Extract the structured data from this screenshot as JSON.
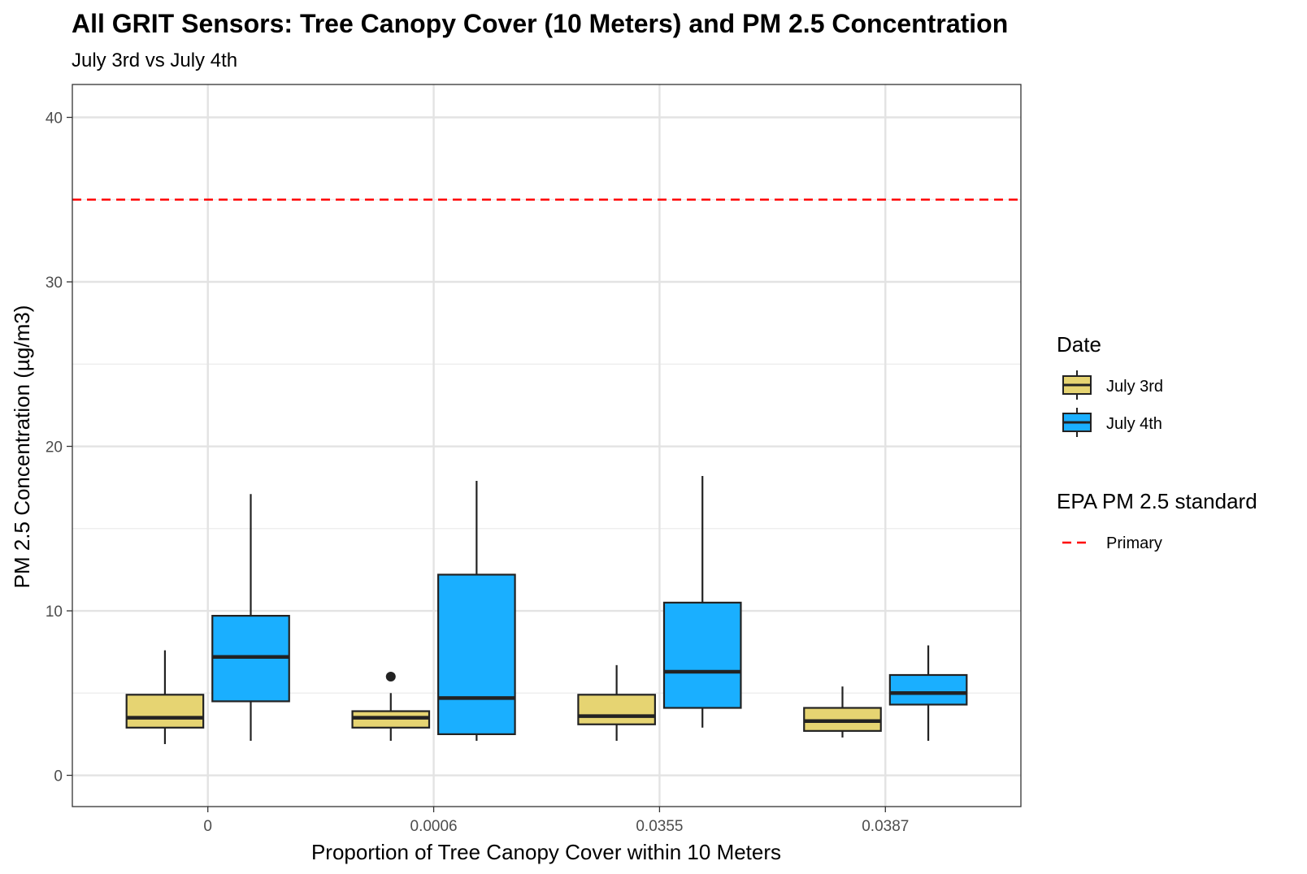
{
  "chart_data": {
    "type": "boxplot",
    "title": "All GRIT Sensors: Tree Canopy Cover (10 Meters) and PM 2.5 Concentration",
    "subtitle": "July 3rd vs July 4th",
    "xlabel": "Proportion of Tree Canopy Cover within 10 Meters",
    "ylabel": "PM 2.5 Concentration (µg/m3)",
    "categories": [
      "0",
      "0.0006",
      "0.0355",
      "0.0387"
    ],
    "ylim": [
      -1.9,
      42
    ],
    "yticks": [
      0,
      10,
      20,
      30,
      40
    ],
    "grid": true,
    "legend_position": "right",
    "series": [
      {
        "name": "July 3rd",
        "color": "#E6D472",
        "boxes": [
          {
            "whisker_low": 1.9,
            "q1": 2.9,
            "median": 3.5,
            "q3": 4.9,
            "whisker_high": 7.6,
            "outliers": []
          },
          {
            "whisker_low": 2.1,
            "q1": 2.9,
            "median": 3.5,
            "q3": 3.9,
            "whisker_high": 5.0,
            "outliers": [
              6.0
            ]
          },
          {
            "whisker_low": 2.1,
            "q1": 3.1,
            "median": 3.6,
            "q3": 4.9,
            "whisker_high": 6.7,
            "outliers": []
          },
          {
            "whisker_low": 2.3,
            "q1": 2.7,
            "median": 3.3,
            "q3": 4.1,
            "whisker_high": 5.4,
            "outliers": []
          }
        ]
      },
      {
        "name": "July 4th",
        "color": "#1AAFFF",
        "boxes": [
          {
            "whisker_low": 2.1,
            "q1": 4.5,
            "median": 7.2,
            "q3": 9.7,
            "whisker_high": 17.1,
            "outliers": []
          },
          {
            "whisker_low": 2.1,
            "q1": 2.5,
            "median": 4.7,
            "q3": 12.2,
            "whisker_high": 17.9,
            "outliers": []
          },
          {
            "whisker_low": 2.9,
            "q1": 4.1,
            "median": 6.3,
            "q3": 10.5,
            "whisker_high": 18.2,
            "outliers": []
          },
          {
            "whisker_low": 2.1,
            "q1": 4.3,
            "median": 5.0,
            "q3": 6.1,
            "whisker_high": 7.9,
            "outliers": []
          }
        ]
      }
    ],
    "reference_line": {
      "value": 35,
      "color": "#FF0000",
      "style": "dashed",
      "label": "Primary"
    },
    "legend": {
      "fill_title": "Date",
      "fill_items": [
        "July 3rd",
        "July 4th"
      ],
      "line_title": "EPA PM 2.5 standard",
      "line_items": [
        "Primary"
      ]
    }
  }
}
